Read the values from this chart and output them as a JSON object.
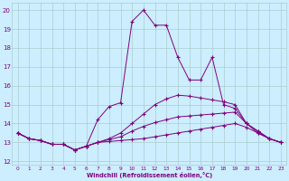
{
  "xlabel": "Windchill (Refroidissement éolien,°C)",
  "ylabel": "",
  "bg_color": "#cceeff",
  "line_color": "#800080",
  "grid_color": "#aacccc",
  "text_color": "#800080",
  "xlim": [
    -0.5,
    23.5
  ],
  "ylim": [
    11.8,
    20.4
  ],
  "yticks": [
    12,
    13,
    14,
    15,
    16,
    17,
    18,
    19,
    20
  ],
  "xticks": [
    0,
    1,
    2,
    3,
    4,
    5,
    6,
    7,
    8,
    9,
    10,
    11,
    12,
    13,
    14,
    15,
    16,
    17,
    18,
    19,
    20,
    21,
    22,
    23
  ],
  "line1_x": [
    0,
    1,
    2,
    3,
    4,
    5,
    6,
    7,
    8,
    9,
    10,
    11,
    12,
    13,
    14,
    15,
    16,
    17,
    18,
    19,
    20,
    21,
    22,
    23
  ],
  "line1_y": [
    13.5,
    13.2,
    13.1,
    12.9,
    12.9,
    12.6,
    12.8,
    14.2,
    14.9,
    15.1,
    19.4,
    20.0,
    19.2,
    19.2,
    17.5,
    16.3,
    16.3,
    17.5,
    15.0,
    14.8,
    14.0,
    13.5,
    13.2,
    13.0
  ],
  "line2_x": [
    0,
    1,
    2,
    3,
    4,
    5,
    6,
    7,
    8,
    9,
    10,
    11,
    12,
    13,
    14,
    15,
    16,
    17,
    18,
    19,
    20,
    21,
    22,
    23
  ],
  "line2_y": [
    13.5,
    13.2,
    13.1,
    12.9,
    12.9,
    12.6,
    12.8,
    13.0,
    13.05,
    13.1,
    13.15,
    13.2,
    13.3,
    13.4,
    13.5,
    13.6,
    13.7,
    13.8,
    13.9,
    14.0,
    13.8,
    13.5,
    13.2,
    13.0
  ],
  "line3_x": [
    0,
    1,
    2,
    3,
    4,
    5,
    6,
    7,
    8,
    9,
    10,
    11,
    12,
    13,
    14,
    15,
    16,
    17,
    18,
    19,
    20,
    21,
    22,
    23
  ],
  "line3_y": [
    13.5,
    13.2,
    13.1,
    12.9,
    12.9,
    12.6,
    12.8,
    13.0,
    13.15,
    13.3,
    13.6,
    13.85,
    14.05,
    14.2,
    14.35,
    14.4,
    14.45,
    14.5,
    14.55,
    14.6,
    14.0,
    13.6,
    13.2,
    13.0
  ],
  "line4_x": [
    0,
    1,
    2,
    3,
    4,
    5,
    6,
    7,
    8,
    9,
    10,
    11,
    12,
    13,
    14,
    15,
    16,
    17,
    18,
    19,
    20,
    21,
    22,
    23
  ],
  "line4_y": [
    13.5,
    13.2,
    13.1,
    12.9,
    12.9,
    12.6,
    12.8,
    13.0,
    13.2,
    13.5,
    14.0,
    14.5,
    15.0,
    15.3,
    15.5,
    15.45,
    15.35,
    15.25,
    15.15,
    15.0,
    14.0,
    13.6,
    13.2,
    13.0
  ]
}
